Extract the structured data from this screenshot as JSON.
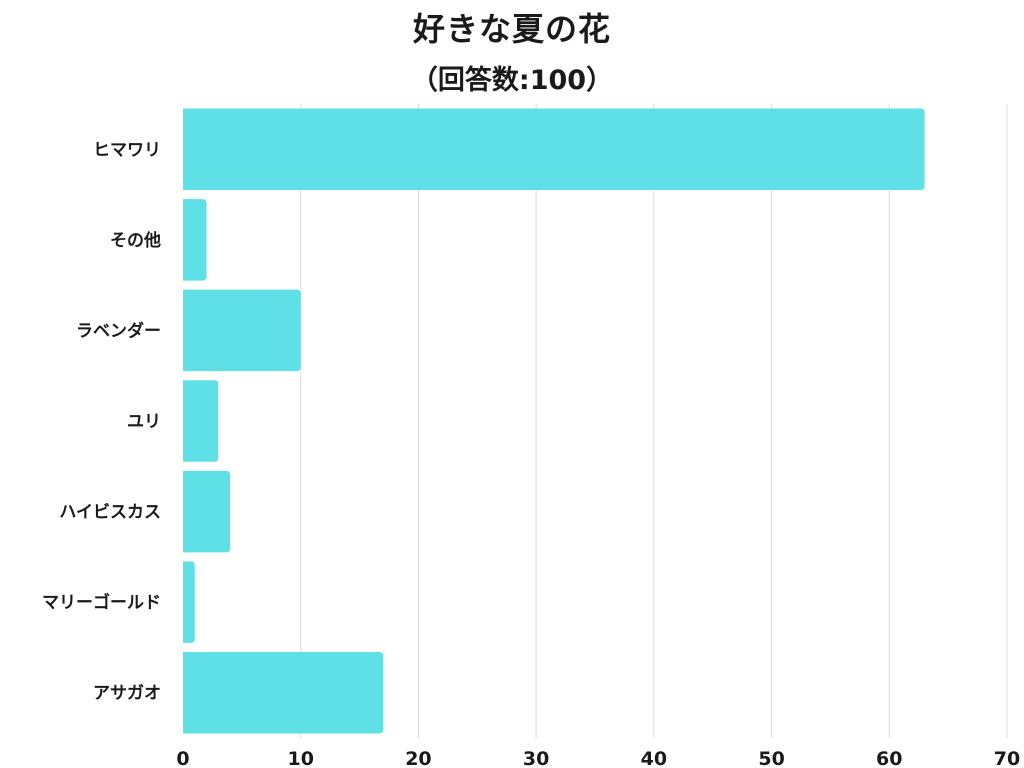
{
  "chart_data": {
    "type": "bar",
    "orientation": "horizontal",
    "title": "好きな夏の花",
    "subtitle": "（回答数:100）",
    "categories": [
      "ヒマワリ",
      "その他",
      "ラベンダー",
      "ユリ",
      "ハイビスカス",
      "マリーゴールド",
      "アサガオ"
    ],
    "values": [
      63,
      2,
      10,
      3,
      4,
      1,
      17
    ],
    "xlim": [
      0,
      70
    ],
    "xticks": [
      0,
      10,
      20,
      30,
      40,
      50,
      60,
      70
    ],
    "grid": true,
    "bar_color": "#5ee0e6",
    "grid_color": "#dcdcdc"
  }
}
